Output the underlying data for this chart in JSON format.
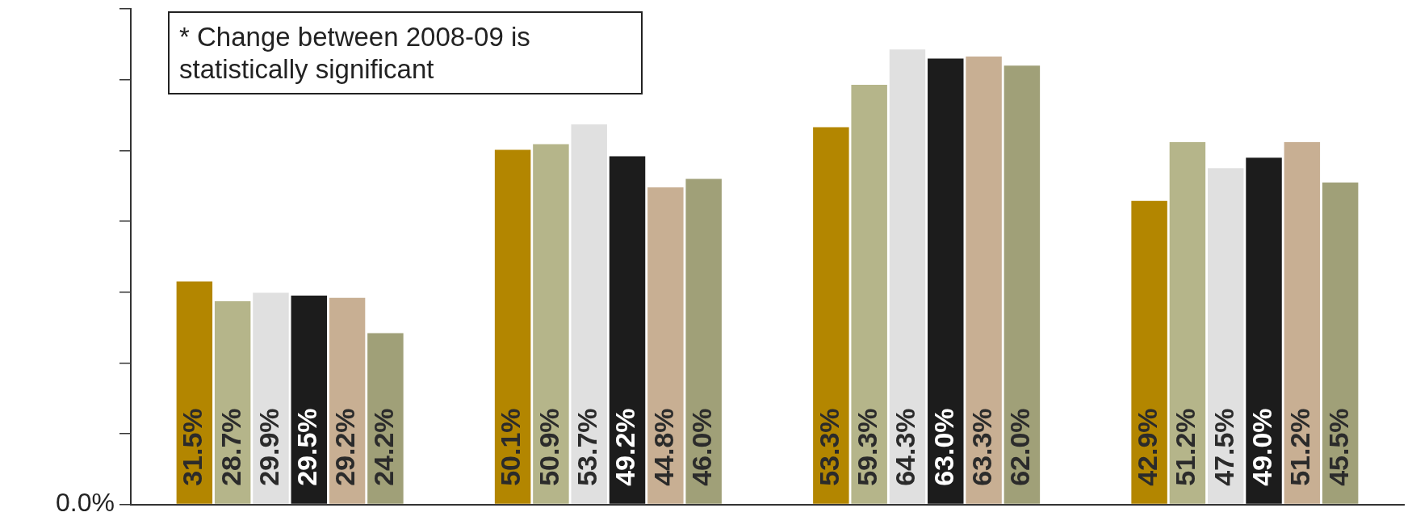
{
  "chart_data": {
    "type": "bar",
    "categories": [
      null,
      null,
      null,
      null
    ],
    "series": [
      {
        "color": "#b38600",
        "values": [
          31.5,
          50.1,
          53.3,
          42.9
        ],
        "value_labels": [
          "31.5%",
          "50.1%",
          "53.3%",
          "42.9%"
        ]
      },
      {
        "color": "#b5b58a",
        "values": [
          28.7,
          50.9,
          59.3,
          51.2
        ],
        "value_labels": [
          "28.7%",
          "50.9%",
          "59.3%",
          "51.2%"
        ]
      },
      {
        "color": "#e0e0e0",
        "values": [
          29.9,
          53.7,
          64.3,
          47.5
        ],
        "value_labels": [
          "29.9%",
          "53.7%",
          "64.3%",
          "47.5%"
        ]
      },
      {
        "color": "#1c1c1c",
        "values": [
          29.5,
          49.2,
          63.0,
          49.0
        ],
        "value_labels": [
          "29.5%",
          "49.2%",
          "63.0%",
          "49.0%"
        ]
      },
      {
        "color": "#c8af93",
        "values": [
          29.2,
          44.8,
          63.3,
          51.2
        ],
        "value_labels": [
          "29.2%",
          "44.8%",
          "63.3%",
          "51.2%"
        ]
      },
      {
        "color": "#a0a078",
        "values": [
          24.2,
          46.0,
          62.0,
          45.5
        ],
        "value_labels": [
          "24.2%",
          "46.0%",
          "62.0%",
          "45.5%"
        ]
      }
    ],
    "annotations": [
      "* Change between 2008-09 is statistically significant",
      "0.0%"
    ],
    "grid": false,
    "legend": false
  }
}
